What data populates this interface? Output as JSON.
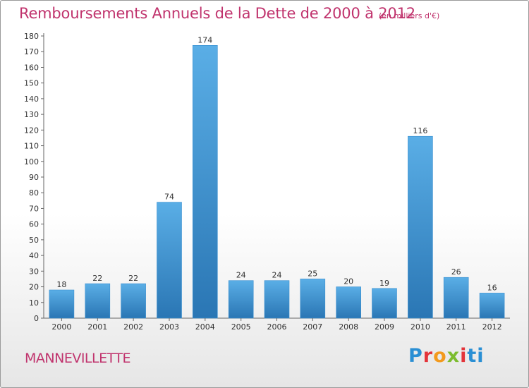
{
  "title": "Remboursements Annuels de la Dette de 2000 à 2012",
  "subtitle": "(en milliers d'€)",
  "commune": "MANNEVILLETTE",
  "logo": {
    "text": "Proxiti",
    "letters": [
      "P",
      "r",
      "o",
      "x",
      "i",
      "ti"
    ]
  },
  "colors": {
    "bar_top": "#5aaee6",
    "bar_bottom": "#2a76b4",
    "title": "#c0336d"
  },
  "chart_data": {
    "type": "bar",
    "title": "Remboursements Annuels de la Dette de 2000 à 2012",
    "subtitle": "(en milliers d'€)",
    "categories": [
      "2000",
      "2001",
      "2002",
      "2003",
      "2004",
      "2005",
      "2006",
      "2007",
      "2008",
      "2009",
      "2010",
      "2011",
      "2012"
    ],
    "values": [
      18,
      22,
      22,
      74,
      174,
      24,
      24,
      25,
      20,
      19,
      116,
      26,
      16
    ],
    "xlabel": "",
    "ylabel": "",
    "ylim": [
      0,
      180
    ],
    "ytick_step": 10,
    "grid": false,
    "legend": "none"
  }
}
